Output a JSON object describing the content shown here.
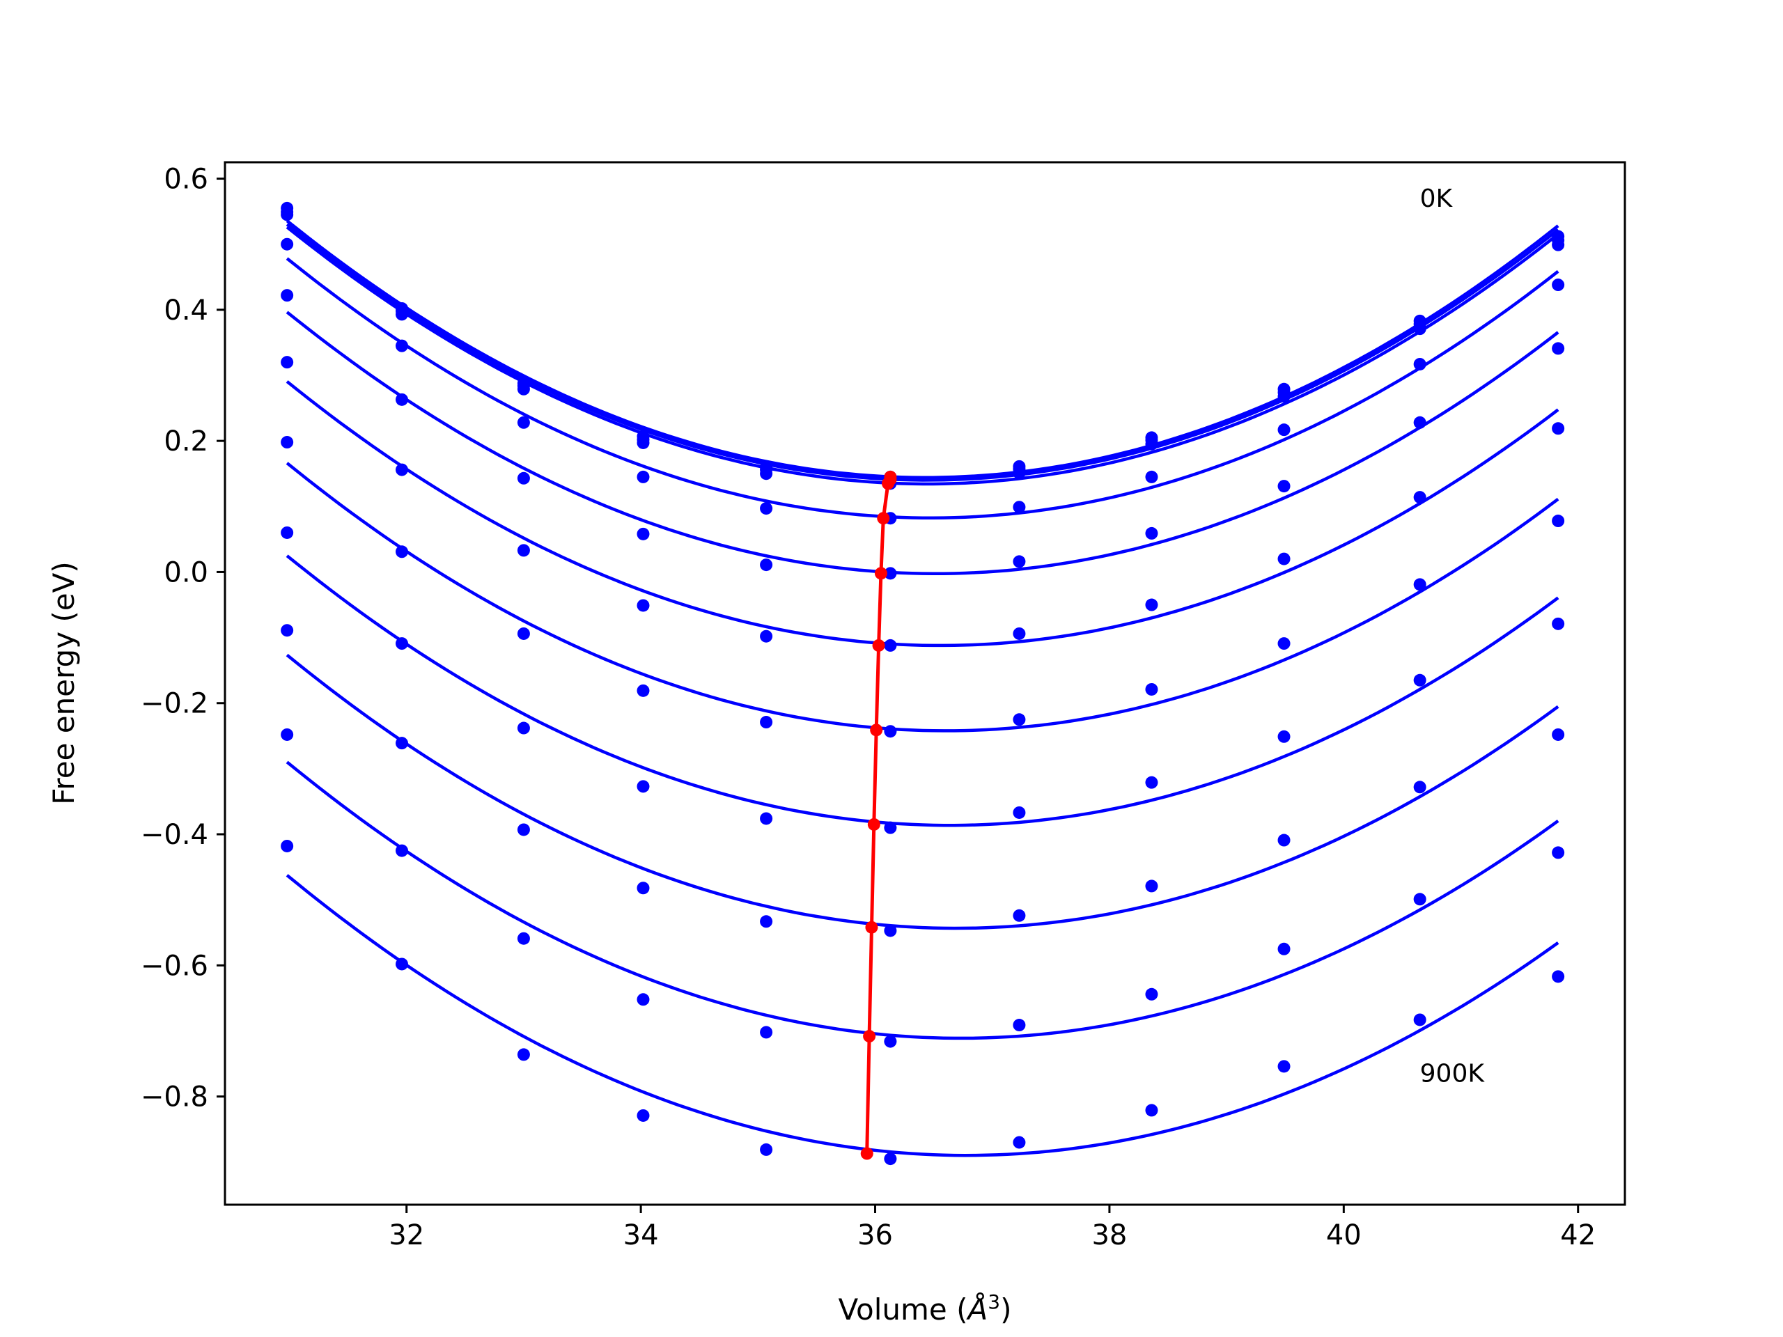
{
  "chart_data": {
    "type": "line",
    "xlabel": "Volume (",
    "xlabel_sym": "Å",
    "xlabel_exp": "3",
    "xlabel_close": ")",
    "ylabel": "Free energy (eV)",
    "xlim": [
      30.45,
      42.4
    ],
    "ylim": [
      -0.965,
      0.625
    ],
    "x_ticks": [
      32,
      34,
      36,
      38,
      40,
      42
    ],
    "x_tick_labels": [
      "32",
      "34",
      "36",
      "38",
      "40",
      "42"
    ],
    "y_ticks": [
      0.6,
      0.4,
      0.2,
      0.0,
      -0.2,
      -0.4,
      -0.6,
      -0.8
    ],
    "y_tick_labels": [
      "0.6",
      "0.4",
      "0.2",
      "0.0",
      "−0.2",
      "−0.4",
      "−0.6",
      "−0.8"
    ],
    "grid": false,
    "annotations": [
      {
        "text": "0K",
        "x": 40.65,
        "y": 0.57
      },
      {
        "text": "900K",
        "x": 40.65,
        "y": -0.765
      }
    ],
    "volumes": [
      30.98,
      31.96,
      33.0,
      34.02,
      35.07,
      36.13,
      37.23,
      38.36,
      39.49,
      40.65,
      41.83
    ],
    "series": [
      {
        "color": "#0000ff",
        "values": [
          0.555,
          0.402,
          0.288,
          0.207,
          0.16,
          0.145,
          0.161,
          0.205,
          0.279,
          0.383,
          0.512
        ]
      },
      {
        "color": "#0000ff",
        "values": [
          0.549,
          0.398,
          0.284,
          0.202,
          0.156,
          0.141,
          0.157,
          0.201,
          0.274,
          0.378,
          0.506
        ]
      },
      {
        "color": "#0000ff",
        "values": [
          0.545,
          0.393,
          0.279,
          0.197,
          0.15,
          0.135,
          0.151,
          0.195,
          0.268,
          0.371,
          0.499
        ]
      },
      {
        "color": "#0000ff",
        "values": [
          0.5,
          0.345,
          0.228,
          0.145,
          0.097,
          0.082,
          0.099,
          0.145,
          0.217,
          0.317,
          0.438
        ]
      },
      {
        "color": "#0000ff",
        "values": [
          0.422,
          0.263,
          0.143,
          0.058,
          0.011,
          -0.002,
          0.016,
          0.059,
          0.131,
          0.228,
          0.341
        ]
      },
      {
        "color": "#0000ff",
        "values": [
          0.32,
          0.156,
          0.033,
          -0.051,
          -0.098,
          -0.112,
          -0.094,
          -0.05,
          0.02,
          0.114,
          0.219
        ]
      },
      {
        "color": "#0000ff",
        "values": [
          0.198,
          0.031,
          -0.094,
          -0.181,
          -0.229,
          -0.243,
          -0.225,
          -0.179,
          -0.109,
          -0.019,
          0.078
        ]
      },
      {
        "color": "#0000ff",
        "values": [
          0.06,
          -0.109,
          -0.238,
          -0.327,
          -0.376,
          -0.39,
          -0.367,
          -0.321,
          -0.251,
          -0.165,
          -0.079
        ]
      },
      {
        "color": "#0000ff",
        "values": [
          -0.089,
          -0.261,
          -0.393,
          -0.482,
          -0.533,
          -0.547,
          -0.524,
          -0.479,
          -0.409,
          -0.328,
          -0.248
        ]
      },
      {
        "color": "#0000ff",
        "values": [
          -0.248,
          -0.425,
          -0.559,
          -0.652,
          -0.702,
          -0.716,
          -0.691,
          -0.644,
          -0.575,
          -0.499,
          -0.428
        ]
      },
      {
        "color": "#0000ff",
        "values": [
          -0.418,
          -0.598,
          -0.736,
          -0.829,
          -0.881,
          -0.895,
          -0.87,
          -0.821,
          -0.754,
          -0.683,
          -0.617
        ]
      }
    ],
    "minimum_path": {
      "color": "#ff0000",
      "x": [
        36.13,
        36.13,
        36.11,
        36.07,
        36.05,
        36.03,
        36.01,
        35.99,
        35.97,
        35.95,
        35.93
      ],
      "y": [
        0.145,
        0.141,
        0.135,
        0.082,
        -0.002,
        -0.112,
        -0.241,
        -0.385,
        -0.542,
        -0.708,
        -0.887
      ]
    }
  }
}
